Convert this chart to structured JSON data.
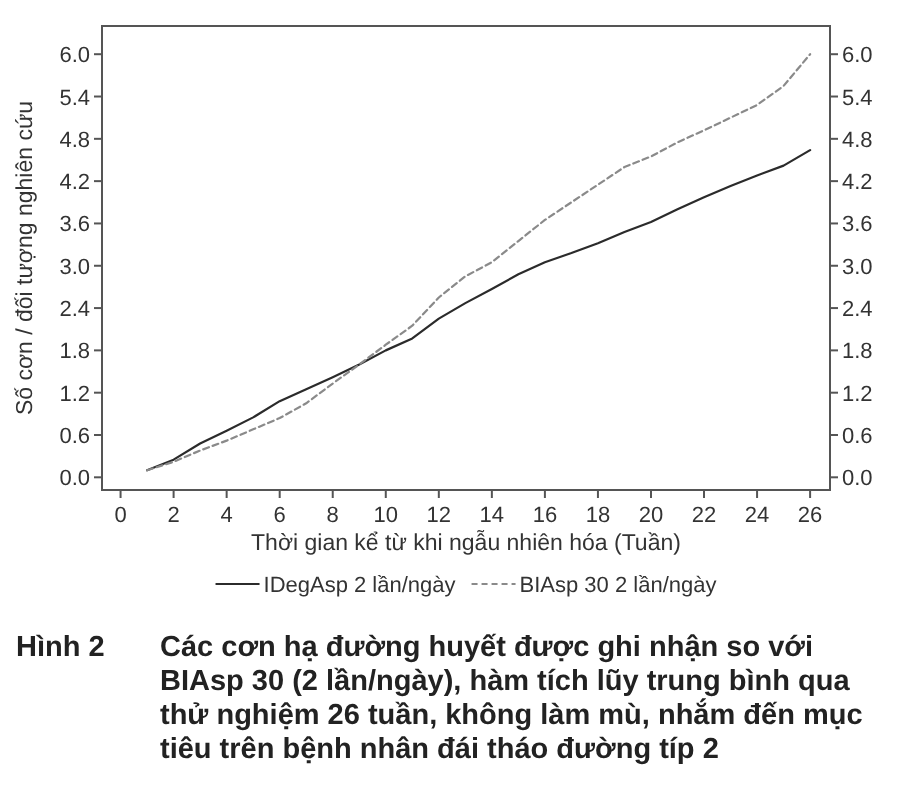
{
  "chart_data": {
    "type": "line",
    "title": "Hình 2",
    "subtitle": "Các cơn hạ đường huyết được ghi nhận so với BIAsp 30 (2 lần/ngày), hàm tích lũy trung bình qua thử nghiệm 26 tuần, không làm mù, nhắm đến mục tiêu trên bệnh nhân đái tháo đường típ 2",
    "xlabel": "Thời gian kể từ khi ngẫu nhiên hóa (Tuần)",
    "ylabel": "Số cơn / đối tượng nghiên cứu",
    "x": [
      1,
      2,
      3,
      4,
      5,
      6,
      7,
      8,
      9,
      10,
      11,
      12,
      13,
      14,
      15,
      16,
      17,
      18,
      19,
      20,
      21,
      22,
      23,
      24,
      25,
      26
    ],
    "series": [
      {
        "name": "IDegAsp 2 lần/ngày",
        "color": "#2b2b2b",
        "line_style": "solid",
        "values": [
          0.1,
          0.25,
          0.48,
          0.66,
          0.85,
          1.08,
          1.25,
          1.42,
          1.6,
          1.8,
          1.97,
          2.25,
          2.47,
          2.67,
          2.88,
          3.05,
          3.18,
          3.32,
          3.48,
          3.62,
          3.8,
          3.97,
          4.13,
          4.28,
          4.42,
          4.64
        ]
      },
      {
        "name": "BIAsp 30 2 lần/ngày",
        "color": "#8a8a8a",
        "line_style": "dashed",
        "values": [
          0.1,
          0.22,
          0.38,
          0.52,
          0.68,
          0.84,
          1.05,
          1.33,
          1.6,
          1.88,
          2.15,
          2.55,
          2.85,
          3.05,
          3.35,
          3.65,
          3.9,
          4.15,
          4.4,
          4.55,
          4.75,
          4.92,
          5.1,
          5.28,
          5.55,
          6.0
        ]
      }
    ],
    "xlim": [
      -0.7,
      26.75
    ],
    "xticks": [
      0,
      2,
      4,
      6,
      8,
      10,
      12,
      14,
      16,
      18,
      20,
      22,
      24,
      26
    ],
    "ylim": [
      -0.18,
      6.4
    ],
    "yticks": [
      {
        "value": 0,
        "label": "0.0"
      },
      0.6,
      1.2,
      1.8,
      2.4,
      {
        "value": 3,
        "label": "3.0"
      },
      3.6,
      4.2,
      4.8,
      5.4,
      {
        "value": 6,
        "label": "6.0"
      }
    ],
    "y2lim": [
      -0.18,
      6.4
    ],
    "y2ticks": [
      {
        "value": 0,
        "label": "0.0"
      },
      0.6,
      1.2,
      1.8,
      2.4,
      {
        "value": 3,
        "label": "3.0"
      },
      3.6,
      4.2,
      4.8,
      5.4,
      {
        "value": 6,
        "label": "6.0"
      }
    ],
    "legend": "bottom"
  }
}
